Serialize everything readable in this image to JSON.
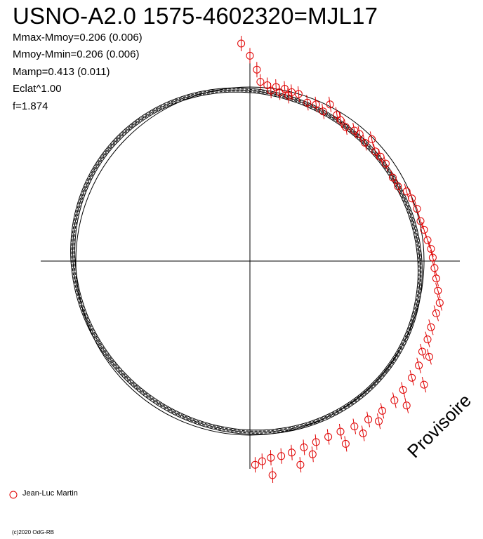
{
  "title": "USNO-A2.0 1575-4602320=MJL17",
  "stats": [
    "Mmax-Mmoy=0.206 (0.006)",
    "Mmoy-Mmin=0.206 (0.006)",
    "Mamp=0.413 (0.011)",
    "Eclat^1.00",
    "f=1.874"
  ],
  "watermark": "Provisoire",
  "copyright": "(c)2020 OdG-RB",
  "legend": [
    {
      "label": "Jean-Luc Martin",
      "color": "#e00000",
      "marker": "circle-icon"
    }
  ],
  "colors": {
    "observations": "#e00000",
    "curve": "#000000",
    "axes": "#000000"
  },
  "chart_data": {
    "type": "scatter",
    "projection": "polar light curve (phase as angle, brightness as radius)",
    "reference_circle": true,
    "axes_cross": true,
    "grid": false,
    "legend_position": "bottom-left",
    "series": [
      {
        "name": "Jean-Luc Martin",
        "points": [
          [
            -0.05,
            1.25
          ],
          [
            0.0,
            1.18
          ],
          [
            0.04,
            1.1
          ],
          [
            0.06,
            1.03
          ],
          [
            0.1,
            1.01
          ],
          [
            0.12,
            0.98
          ],
          [
            0.15,
            1.0
          ],
          [
            0.17,
            0.97
          ],
          [
            0.2,
            0.99
          ],
          [
            0.22,
            0.95
          ],
          [
            0.24,
            0.97
          ],
          [
            0.28,
            0.96
          ],
          [
            0.33,
            0.91
          ],
          [
            0.38,
            0.9
          ],
          [
            0.42,
            0.86
          ],
          [
            0.46,
            0.9
          ],
          [
            0.5,
            0.84
          ],
          [
            0.52,
            0.81
          ],
          [
            0.55,
            0.77
          ],
          [
            0.6,
            0.75
          ],
          [
            0.63,
            0.73
          ],
          [
            0.66,
            0.68
          ],
          [
            0.7,
            0.7
          ],
          [
            0.72,
            0.63
          ],
          [
            0.75,
            0.6
          ],
          [
            0.78,
            0.56
          ],
          [
            0.82,
            0.48
          ],
          [
            0.85,
            0.43
          ],
          [
            0.9,
            0.4
          ],
          [
            0.93,
            0.36
          ],
          [
            0.96,
            0.3
          ],
          [
            0.98,
            0.23
          ],
          [
            1.0,
            0.18
          ],
          [
            1.02,
            0.12
          ],
          [
            1.04,
            0.07
          ],
          [
            1.05,
            0.02
          ],
          [
            1.06,
            -0.04
          ],
          [
            1.07,
            -0.1
          ],
          [
            1.08,
            -0.17
          ],
          [
            1.09,
            -0.24
          ],
          [
            1.07,
            -0.3
          ],
          [
            1.04,
            -0.38
          ],
          [
            1.02,
            -0.45
          ],
          [
            0.99,
            -0.52
          ],
          [
            0.97,
            -0.6
          ],
          [
            0.93,
            -0.67
          ],
          [
            0.88,
            -0.74
          ],
          [
            0.83,
            -0.8
          ],
          [
            0.76,
            -0.86
          ],
          [
            0.68,
            -0.91
          ],
          [
            0.6,
            -0.95
          ],
          [
            0.52,
            -0.98
          ],
          [
            0.45,
            -1.01
          ],
          [
            0.38,
            -1.04
          ],
          [
            0.31,
            -1.07
          ],
          [
            0.24,
            -1.1
          ],
          [
            0.18,
            -1.12
          ],
          [
            0.12,
            -1.13
          ],
          [
            0.07,
            -1.15
          ],
          [
            0.03,
            -1.17
          ],
          [
            0.13,
            -1.23
          ],
          [
            0.29,
            -1.17
          ],
          [
            0.36,
            -1.11
          ],
          [
            0.55,
            -1.05
          ],
          [
            0.65,
            -0.99
          ],
          [
            0.74,
            -0.92
          ],
          [
            0.9,
            -0.83
          ],
          [
            1.0,
            -0.71
          ],
          [
            1.03,
            -0.55
          ]
        ]
      }
    ],
    "fit_curve": {
      "shape": "ellipse",
      "center": [
        -0.02,
        0.0
      ],
      "semi_axes": [
        1.02,
        0.96
      ],
      "rotation_deg": -38
    },
    "xlim": [
      -1.2,
      1.2
    ],
    "ylim": [
      -1.2,
      1.2
    ]
  }
}
